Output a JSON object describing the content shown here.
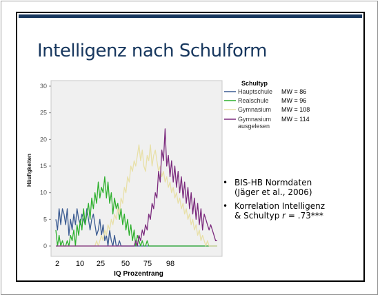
{
  "slide": {
    "title": "Intelligenz nach Schulform"
  },
  "bullets": [
    {
      "line1": "BIS-HB Normdaten",
      "line2": "(Jäger et al., 2006)"
    },
    {
      "line1": "Korrelation Intelligenz",
      "line2_pre": "& Schultyp ",
      "line2_r": "r",
      "line2_post": " = .73***"
    }
  ],
  "chart_data": {
    "type": "line",
    "xlabel": "IQ Prozentrang",
    "ylabel": "Häufigkeiten",
    "x_ticks": [
      "2",
      "10",
      "25",
      "50",
      "75",
      "98"
    ],
    "y_ticks": [
      0,
      5,
      10,
      15,
      20,
      25,
      30
    ],
    "ylim": [
      0,
      30
    ],
    "legend_title": "Schultyp",
    "legend_position": "right",
    "grid": false,
    "series": [
      {
        "name": "Hauptschule",
        "mw": "MW = 86",
        "color": "#3b5b92",
        "values": [
          5,
          3,
          7,
          4,
          7,
          6,
          4,
          7,
          2,
          5,
          3,
          6,
          4,
          7,
          5,
          4,
          6,
          5,
          4,
          7,
          5,
          3,
          5,
          6,
          4,
          2,
          3,
          5,
          2,
          4,
          1,
          2,
          0,
          3,
          1,
          0,
          2,
          0,
          0,
          1,
          0,
          0,
          0,
          0,
          0,
          0,
          0,
          0,
          0,
          0,
          0,
          0,
          0,
          0,
          0,
          0,
          0,
          0,
          0,
          0,
          0,
          0,
          0,
          0,
          0,
          0,
          0,
          0,
          0,
          0,
          0,
          0,
          0,
          0,
          0,
          0,
          0,
          0,
          0,
          0,
          0,
          0,
          0,
          0,
          0,
          0,
          0,
          0,
          0,
          0,
          0,
          0,
          0,
          0,
          0,
          0,
          0,
          0,
          0,
          0
        ]
      },
      {
        "name": "Realschule",
        "mw": "MW = 96",
        "color": "#2eb02e",
        "values": [
          3,
          0,
          2,
          0,
          1,
          0,
          0,
          1,
          0,
          2,
          1,
          3,
          0,
          4,
          2,
          5,
          3,
          7,
          4,
          6,
          8,
          5,
          9,
          7,
          10,
          8,
          12,
          9,
          11,
          10,
          13,
          9,
          12,
          8,
          10,
          6,
          9,
          7,
          8,
          5,
          7,
          4,
          6,
          3,
          5,
          2,
          4,
          1,
          3,
          0,
          2,
          1,
          0,
          1,
          0,
          0,
          1,
          0,
          0,
          0,
          0,
          0,
          0,
          0,
          0,
          0,
          0,
          0,
          0,
          0,
          0,
          0,
          0,
          0,
          0,
          0,
          0,
          0,
          0,
          0,
          0,
          0,
          0,
          0,
          0,
          0,
          0,
          0,
          0,
          0,
          0,
          0,
          0,
          0,
          0,
          0,
          0,
          0,
          0,
          0
        ]
      },
      {
        "name": "Gymnasium",
        "mw": "MW = 108",
        "color": "#e8e0a8",
        "values": [
          0,
          0,
          0,
          0,
          0,
          0,
          0,
          0,
          0,
          0,
          0,
          0,
          0,
          0,
          0,
          0,
          0,
          0,
          0,
          0,
          0,
          0,
          0,
          0,
          0,
          1,
          0,
          1,
          2,
          1,
          3,
          2,
          4,
          3,
          5,
          4,
          6,
          5,
          7,
          6,
          9,
          8,
          11,
          10,
          13,
          12,
          15,
          14,
          16,
          15,
          17,
          19,
          16,
          18,
          15,
          14,
          17,
          16,
          19,
          15,
          17,
          18,
          16,
          14,
          15,
          13,
          14,
          12,
          13,
          11,
          12,
          10,
          11,
          9,
          10,
          8,
          9,
          7,
          8,
          6,
          7,
          5,
          6,
          4,
          5,
          3,
          4,
          2,
          3,
          1,
          2,
          1,
          0,
          1,
          0,
          0,
          0,
          0,
          0,
          0
        ]
      },
      {
        "name": "Gymnasium ausgelesen",
        "mw": "MW = 114",
        "color": "#7b2a7d",
        "values": [
          0,
          0,
          0,
          0,
          0,
          0,
          0,
          0,
          0,
          0,
          0,
          0,
          0,
          0,
          0,
          0,
          0,
          0,
          0,
          0,
          0,
          0,
          0,
          0,
          0,
          0,
          0,
          0,
          0,
          0,
          0,
          0,
          0,
          0,
          0,
          0,
          0,
          0,
          0,
          0,
          0,
          0,
          0,
          0,
          0,
          0,
          0,
          0,
          0,
          1,
          0,
          2,
          1,
          3,
          2,
          4,
          3,
          6,
          5,
          8,
          7,
          10,
          9,
          14,
          12,
          18,
          16,
          22,
          15,
          17,
          13,
          16,
          12,
          15,
          11,
          14,
          10,
          13,
          9,
          12,
          8,
          11,
          7,
          10,
          6,
          9,
          5,
          8,
          4,
          7,
          3,
          6,
          5,
          4,
          3,
          4,
          3,
          2,
          1,
          1
        ]
      }
    ]
  }
}
